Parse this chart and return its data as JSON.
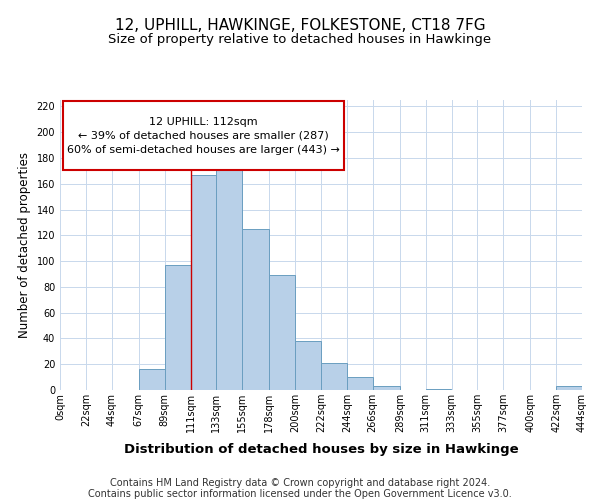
{
  "title": "12, UPHILL, HAWKINGE, FOLKESTONE, CT18 7FG",
  "subtitle": "Size of property relative to detached houses in Hawkinge",
  "xlabel": "Distribution of detached houses by size in Hawkinge",
  "ylabel": "Number of detached properties",
  "footer_line1": "Contains HM Land Registry data © Crown copyright and database right 2024.",
  "footer_line2": "Contains public sector information licensed under the Open Government Licence v3.0.",
  "bar_color": "#b8d0e8",
  "bar_edge_color": "#6a9ec0",
  "annotation_box_color": "#cc0000",
  "annotation_line1": "12 UPHILL: 112sqm",
  "annotation_line2": "← 39% of detached houses are smaller (287)",
  "annotation_line3": "60% of semi-detached houses are larger (443) →",
  "property_line_x": 111,
  "tick_labels": [
    "0sqm",
    "22sqm",
    "44sqm",
    "67sqm",
    "89sqm",
    "111sqm",
    "133sqm",
    "155sqm",
    "178sqm",
    "200sqm",
    "222sqm",
    "244sqm",
    "266sqm",
    "289sqm",
    "311sqm",
    "333sqm",
    "355sqm",
    "377sqm",
    "400sqm",
    "422sqm",
    "444sqm"
  ],
  "bin_edges": [
    0,
    22,
    44,
    67,
    89,
    111,
    133,
    155,
    178,
    200,
    222,
    244,
    266,
    289,
    311,
    333,
    355,
    377,
    400,
    422,
    444
  ],
  "bar_heights": [
    0,
    0,
    0,
    16,
    97,
    167,
    175,
    125,
    89,
    38,
    21,
    10,
    3,
    0,
    1,
    0,
    0,
    0,
    0,
    3
  ],
  "ylim": [
    0,
    225
  ],
  "yticks": [
    0,
    20,
    40,
    60,
    80,
    100,
    120,
    140,
    160,
    180,
    200,
    220
  ],
  "background_color": "#ffffff",
  "grid_color": "#c8d8ec",
  "title_fontsize": 11,
  "subtitle_fontsize": 9.5,
  "xlabel_fontsize": 9.5,
  "ylabel_fontsize": 8.5,
  "tick_fontsize": 7,
  "annotation_fontsize": 8,
  "footer_fontsize": 7
}
